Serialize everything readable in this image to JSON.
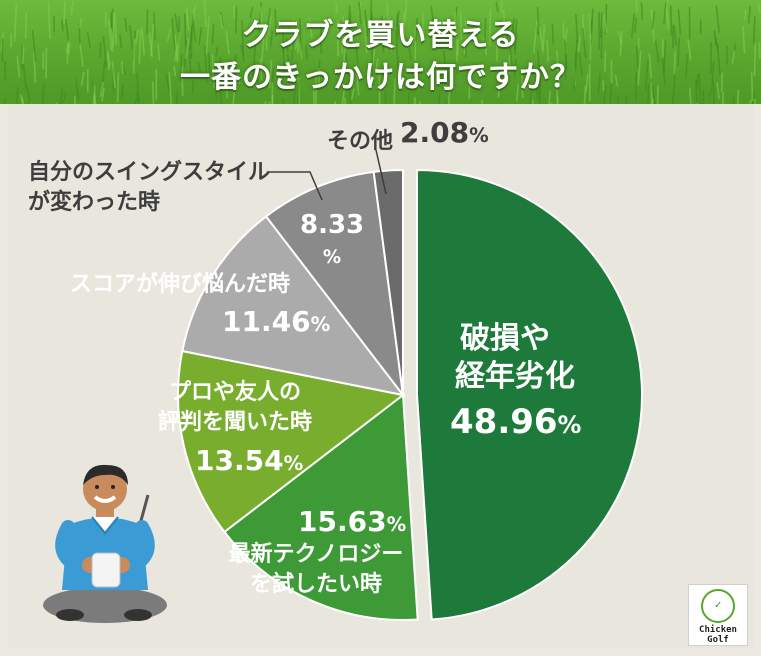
{
  "title": {
    "line1": "クラブを買い替える",
    "line2": "一番のきっかけは何ですか？"
  },
  "chart_data": {
    "type": "pie",
    "start": "top",
    "direction": "clockwise",
    "slices": [
      {
        "label_lines": [
          "破損や",
          "経年劣化"
        ],
        "value": 48.96,
        "color": "#1e7a3a"
      },
      {
        "label_lines": [
          "最新テクノロジー",
          "を試したい時"
        ],
        "value": 15.63,
        "color": "#3d9a36"
      },
      {
        "label_lines": [
          "プロや友人の",
          "評判を聞いた時"
        ],
        "value": 13.54,
        "color": "#78ad2e"
      },
      {
        "label_lines": [
          "スコアが伸び悩んだ時"
        ],
        "value": 11.46,
        "color": "#ababab"
      },
      {
        "label_lines": [
          "自分のスイングスタイル",
          "が変わった時"
        ],
        "value": 8.33,
        "color": "#8a8a8a"
      },
      {
        "label_lines": [
          "その他"
        ],
        "value": 2.08,
        "color": "#6b6b6b"
      }
    ],
    "unit": "%"
  },
  "logo": {
    "line1": "Chicken",
    "line2": "Golf",
    "mark": "Chicken Golf"
  },
  "icons": {
    "illustration": "golfer-illustration-icon",
    "grass": "grass-pattern-icon"
  }
}
